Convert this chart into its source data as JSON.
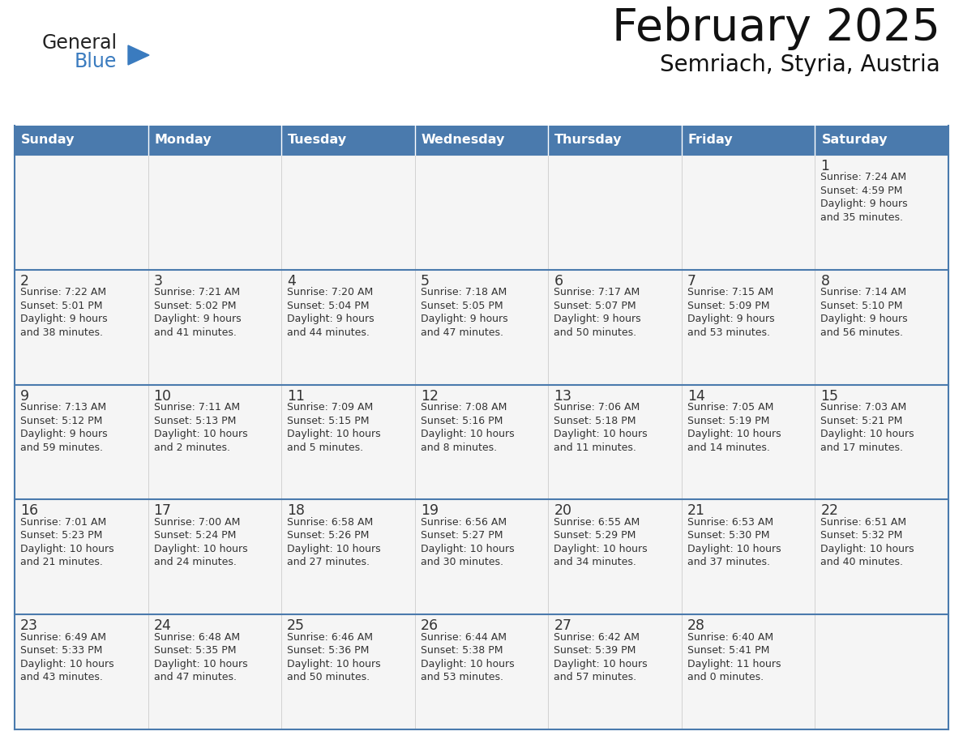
{
  "title": "February 2025",
  "subtitle": "Semriach, Styria, Austria",
  "days_of_week": [
    "Sunday",
    "Monday",
    "Tuesday",
    "Wednesday",
    "Thursday",
    "Friday",
    "Saturday"
  ],
  "header_bg": "#4a7aad",
  "header_text": "#ffffff",
  "cell_bg": "#f5f5f5",
  "cell_border_color": "#4a7aad",
  "text_color": "#333333",
  "logo_dark_color": "#222222",
  "logo_blue_color": "#3a7bbf",
  "calendar_data": [
    [
      null,
      null,
      null,
      null,
      null,
      null,
      {
        "day": 1,
        "sunrise": "7:24 AM",
        "sunset": "4:59 PM",
        "daylight": "9 hours",
        "daylight2": "and 35 minutes."
      }
    ],
    [
      {
        "day": 2,
        "sunrise": "7:22 AM",
        "sunset": "5:01 PM",
        "daylight": "9 hours",
        "daylight2": "and 38 minutes."
      },
      {
        "day": 3,
        "sunrise": "7:21 AM",
        "sunset": "5:02 PM",
        "daylight": "9 hours",
        "daylight2": "and 41 minutes."
      },
      {
        "day": 4,
        "sunrise": "7:20 AM",
        "sunset": "5:04 PM",
        "daylight": "9 hours",
        "daylight2": "and 44 minutes."
      },
      {
        "day": 5,
        "sunrise": "7:18 AM",
        "sunset": "5:05 PM",
        "daylight": "9 hours",
        "daylight2": "and 47 minutes."
      },
      {
        "day": 6,
        "sunrise": "7:17 AM",
        "sunset": "5:07 PM",
        "daylight": "9 hours",
        "daylight2": "and 50 minutes."
      },
      {
        "day": 7,
        "sunrise": "7:15 AM",
        "sunset": "5:09 PM",
        "daylight": "9 hours",
        "daylight2": "and 53 minutes."
      },
      {
        "day": 8,
        "sunrise": "7:14 AM",
        "sunset": "5:10 PM",
        "daylight": "9 hours",
        "daylight2": "and 56 minutes."
      }
    ],
    [
      {
        "day": 9,
        "sunrise": "7:13 AM",
        "sunset": "5:12 PM",
        "daylight": "9 hours",
        "daylight2": "and 59 minutes."
      },
      {
        "day": 10,
        "sunrise": "7:11 AM",
        "sunset": "5:13 PM",
        "daylight": "10 hours",
        "daylight2": "and 2 minutes."
      },
      {
        "day": 11,
        "sunrise": "7:09 AM",
        "sunset": "5:15 PM",
        "daylight": "10 hours",
        "daylight2": "and 5 minutes."
      },
      {
        "day": 12,
        "sunrise": "7:08 AM",
        "sunset": "5:16 PM",
        "daylight": "10 hours",
        "daylight2": "and 8 minutes."
      },
      {
        "day": 13,
        "sunrise": "7:06 AM",
        "sunset": "5:18 PM",
        "daylight": "10 hours",
        "daylight2": "and 11 minutes."
      },
      {
        "day": 14,
        "sunrise": "7:05 AM",
        "sunset": "5:19 PM",
        "daylight": "10 hours",
        "daylight2": "and 14 minutes."
      },
      {
        "day": 15,
        "sunrise": "7:03 AM",
        "sunset": "5:21 PM",
        "daylight": "10 hours",
        "daylight2": "and 17 minutes."
      }
    ],
    [
      {
        "day": 16,
        "sunrise": "7:01 AM",
        "sunset": "5:23 PM",
        "daylight": "10 hours",
        "daylight2": "and 21 minutes."
      },
      {
        "day": 17,
        "sunrise": "7:00 AM",
        "sunset": "5:24 PM",
        "daylight": "10 hours",
        "daylight2": "and 24 minutes."
      },
      {
        "day": 18,
        "sunrise": "6:58 AM",
        "sunset": "5:26 PM",
        "daylight": "10 hours",
        "daylight2": "and 27 minutes."
      },
      {
        "day": 19,
        "sunrise": "6:56 AM",
        "sunset": "5:27 PM",
        "daylight": "10 hours",
        "daylight2": "and 30 minutes."
      },
      {
        "day": 20,
        "sunrise": "6:55 AM",
        "sunset": "5:29 PM",
        "daylight": "10 hours",
        "daylight2": "and 34 minutes."
      },
      {
        "day": 21,
        "sunrise": "6:53 AM",
        "sunset": "5:30 PM",
        "daylight": "10 hours",
        "daylight2": "and 37 minutes."
      },
      {
        "day": 22,
        "sunrise": "6:51 AM",
        "sunset": "5:32 PM",
        "daylight": "10 hours",
        "daylight2": "and 40 minutes."
      }
    ],
    [
      {
        "day": 23,
        "sunrise": "6:49 AM",
        "sunset": "5:33 PM",
        "daylight": "10 hours",
        "daylight2": "and 43 minutes."
      },
      {
        "day": 24,
        "sunrise": "6:48 AM",
        "sunset": "5:35 PM",
        "daylight": "10 hours",
        "daylight2": "and 47 minutes."
      },
      {
        "day": 25,
        "sunrise": "6:46 AM",
        "sunset": "5:36 PM",
        "daylight": "10 hours",
        "daylight2": "and 50 minutes."
      },
      {
        "day": 26,
        "sunrise": "6:44 AM",
        "sunset": "5:38 PM",
        "daylight": "10 hours",
        "daylight2": "and 53 minutes."
      },
      {
        "day": 27,
        "sunrise": "6:42 AM",
        "sunset": "5:39 PM",
        "daylight": "10 hours",
        "daylight2": "and 57 minutes."
      },
      {
        "day": 28,
        "sunrise": "6:40 AM",
        "sunset": "5:41 PM",
        "daylight": "11 hours",
        "daylight2": "and 0 minutes."
      },
      null
    ]
  ]
}
